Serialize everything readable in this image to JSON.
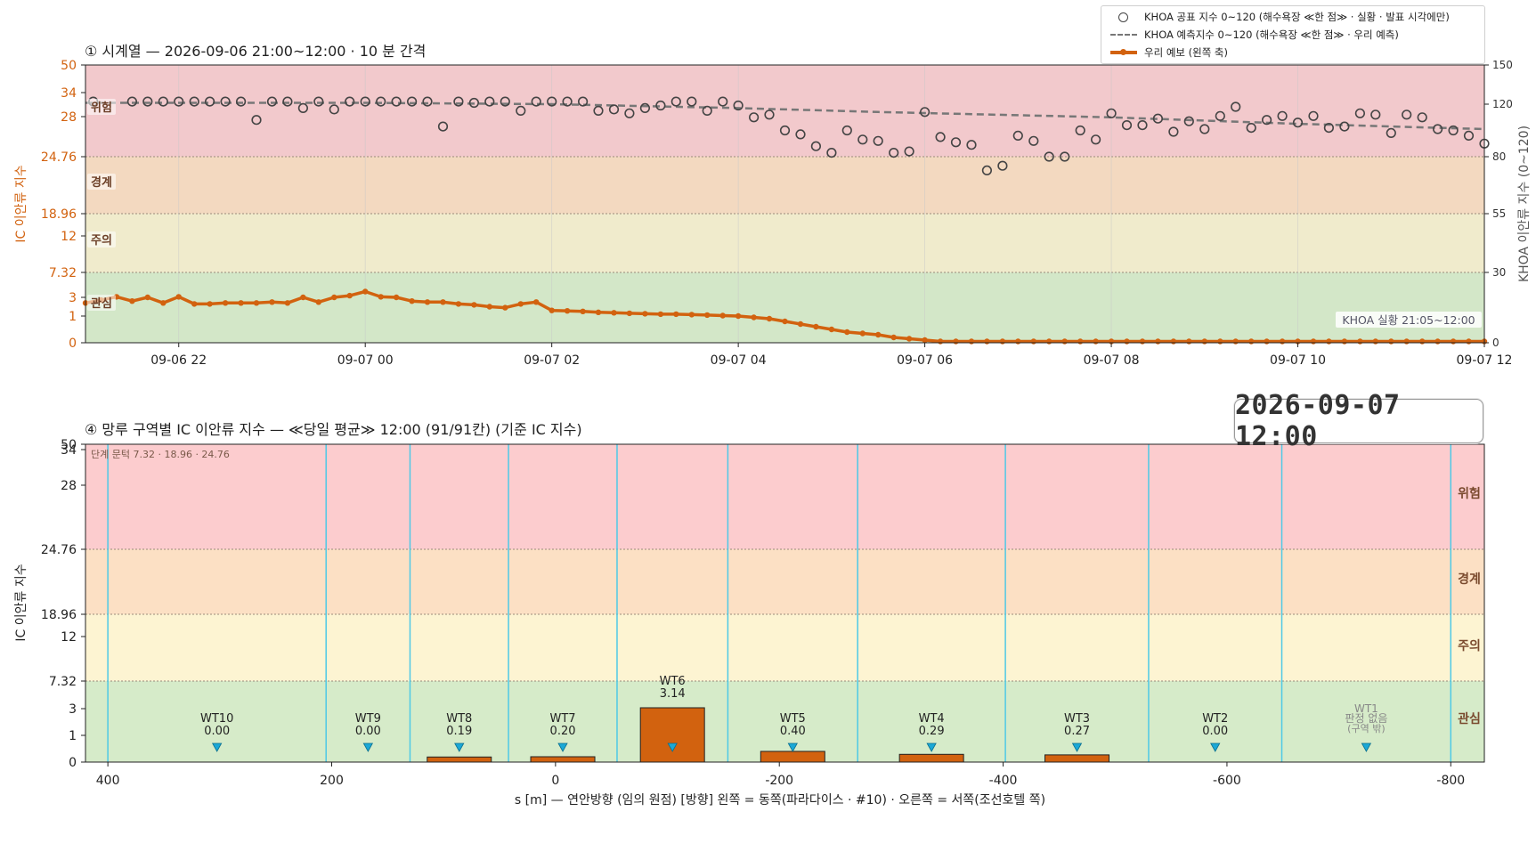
{
  "legend": {
    "khoa_obs": "KHOA 공표 지수 0~120 (해수욕장 ≪한 점≫ · 실황 · 발표 시각에만)",
    "khoa_fc": "KHOA 예측지수 0~120 (해수욕장 ≪한 점≫ · 우리 예측)",
    "ours": "우리 예보 (왼쪽 축)"
  },
  "clock": "2026-09-07  12:00",
  "top": {
    "title": "① 시계열 — 2026-09-06 21:00~12:00 · 10 분 간격",
    "ylabel_left": "IC 이안류 지수",
    "ylabel_right": "KHOA 이안류 지수 (0~120)",
    "badge": "KHOA 실황 21:05~12:00",
    "left_ticks": [
      "0",
      "1",
      "3",
      "7.32",
      "12",
      "18.96",
      "24.76",
      "28",
      "34",
      "50"
    ],
    "right_ticks": [
      "0",
      "30",
      "55",
      "80",
      "120",
      "150"
    ],
    "x_ticks": [
      "09-06 22",
      "09-07 00",
      "09-07 02",
      "09-07 04",
      "09-07 06",
      "09-07 08",
      "09-07 10",
      "09-07 12"
    ],
    "bands": [
      "관심",
      "주의",
      "경계",
      "위험"
    ]
  },
  "bottom": {
    "title": "④ 망루 구역별 IC 이안류 지수 — ≪당일 평균≫ 12:00  (91/91칸)   (기준 IC 지수)",
    "ylabel": "IC 이안류 지수",
    "xlabel": "s [m] — 연안방향 (임의 원점)     [방향] 왼쪽 = 동쪽(파라다이스 · #10) · 오른쪽 = 서쪽(조선호텔 쪽)",
    "threshold_note": "단계 문턱 7.32 · 18.96 · 24.76",
    "left_ticks": [
      "0",
      "1",
      "3",
      "7.32",
      "12",
      "18.96",
      "24.76",
      "28",
      "34",
      "50"
    ],
    "x_ticks": [
      "400",
      "200",
      "0",
      "-200",
      "-400",
      "-600",
      "-800"
    ],
    "bands": [
      "관심",
      "주의",
      "경계",
      "위험"
    ],
    "wt1_note": [
      "WT1",
      "판정 없음",
      "(구역 밖)"
    ]
  },
  "colors": {
    "ours": "#d2620f",
    "khoa": "#555555",
    "band_danger": "#f2c9cc",
    "band_warn": "#f3d9c0",
    "band_caution": "#f0ebcc",
    "band_interest": "#d3e7c8",
    "zone_line": "#4ec9e6",
    "marker": "#1ba8d6",
    "axis_orange": "#d2620f"
  },
  "chart_data": [
    {
      "type": "line",
      "title": "① 시계열 — 2026-09-06 21:00~12:00 · 10 분 간격",
      "x_start": "2026-09-06 21:00",
      "x_end": "2026-09-07 12:00",
      "ylabel": "IC 이안류 지수",
      "y2label": "KHOA 이안류 지수 (0~120)",
      "ylim": [
        0,
        50
      ],
      "y2lim": [
        0,
        150
      ],
      "left_scale_ticks": [
        0,
        1,
        3,
        7.32,
        12,
        18.96,
        24.76,
        28,
        34,
        50
      ],
      "right_scale_ticks": [
        0,
        30,
        55,
        80,
        120,
        150
      ],
      "thresholds": [
        7.32,
        18.96,
        24.76
      ],
      "series": [
        {
          "name": "우리 예보 (왼쪽 축)",
          "x": [
            "2026-09-06 21:00",
            "2026-09-06 21:10",
            "2026-09-06 21:20",
            "2026-09-06 21:30",
            "2026-09-06 21:40",
            "2026-09-06 21:50",
            "2026-09-06 22:00",
            "2026-09-06 22:10",
            "2026-09-06 22:20",
            "2026-09-06 22:30",
            "2026-09-06 22:40",
            "2026-09-06 22:50",
            "2026-09-06 23:00",
            "2026-09-06 23:10",
            "2026-09-06 23:20",
            "2026-09-06 23:30",
            "2026-09-06 23:40",
            "2026-09-06 23:50",
            "2026-09-07 00:00",
            "2026-09-07 00:10",
            "2026-09-07 00:20",
            "2026-09-07 00:30",
            "2026-09-07 00:40",
            "2026-09-07 00:50",
            "2026-09-07 01:00",
            "2026-09-07 01:10",
            "2026-09-07 01:20",
            "2026-09-07 01:30",
            "2026-09-07 01:40",
            "2026-09-07 01:50",
            "2026-09-07 02:00",
            "2026-09-07 02:10",
            "2026-09-07 02:20",
            "2026-09-07 02:30",
            "2026-09-07 02:40",
            "2026-09-07 02:50",
            "2026-09-07 03:00",
            "2026-09-07 03:10",
            "2026-09-07 03:20",
            "2026-09-07 03:30",
            "2026-09-07 03:40",
            "2026-09-07 03:50",
            "2026-09-07 04:00",
            "2026-09-07 04:10",
            "2026-09-07 04:20",
            "2026-09-07 04:30",
            "2026-09-07 04:40",
            "2026-09-07 04:50",
            "2026-09-07 05:00",
            "2026-09-07 05:10",
            "2026-09-07 05:20",
            "2026-09-07 05:30",
            "2026-09-07 05:40",
            "2026-09-07 05:50",
            "2026-09-07 06:00",
            "2026-09-07 06:10",
            "2026-09-07 06:20",
            "2026-09-07 06:30",
            "2026-09-07 06:40",
            "2026-09-07 06:50",
            "2026-09-07 07:00",
            "2026-09-07 07:10",
            "2026-09-07 07:20",
            "2026-09-07 07:30",
            "2026-09-07 07:40",
            "2026-09-07 07:50",
            "2026-09-07 08:00",
            "2026-09-07 08:10",
            "2026-09-07 08:20",
            "2026-09-07 08:30",
            "2026-09-07 08:40",
            "2026-09-07 08:50",
            "2026-09-07 09:00",
            "2026-09-07 09:10",
            "2026-09-07 09:20",
            "2026-09-07 09:30",
            "2026-09-07 09:40",
            "2026-09-07 09:50",
            "2026-09-07 10:00",
            "2026-09-07 10:10",
            "2026-09-07 10:20",
            "2026-09-07 10:30",
            "2026-09-07 10:40",
            "2026-09-07 10:50",
            "2026-09-07 11:00",
            "2026-09-07 11:10",
            "2026-09-07 11:20",
            "2026-09-07 11:30",
            "2026-09-07 11:40",
            "2026-09-07 11:50",
            "2026-09-07 12:00"
          ],
          "y": [
            2.4,
            2.7,
            3.1,
            2.6,
            3.0,
            2.4,
            3.1,
            2.3,
            2.3,
            2.4,
            2.4,
            2.4,
            2.5,
            2.4,
            3.0,
            2.5,
            3.0,
            3.3,
            4.0,
            3.1,
            3.0,
            2.6,
            2.5,
            2.5,
            2.3,
            2.2,
            2.0,
            1.9,
            2.3,
            2.5,
            1.6,
            1.55,
            1.5,
            1.4,
            1.35,
            1.3,
            1.25,
            1.2,
            1.2,
            1.15,
            1.1,
            1.05,
            1.0,
            0.95,
            0.9,
            0.8,
            0.7,
            0.6,
            0.5,
            0.4,
            0.35,
            0.3,
            0.2,
            0.15,
            0.1,
            0.05,
            0.05,
            0.05,
            0.05,
            0.05,
            0.05,
            0.05,
            0.05,
            0.05,
            0.05,
            0.05,
            0.05,
            0.05,
            0.05,
            0.05,
            0.05,
            0.05,
            0.05,
            0.05,
            0.05,
            0.05,
            0.05,
            0.05,
            0.05,
            0.05,
            0.05,
            0.05,
            0.05,
            0.05,
            0.05,
            0.05,
            0.05,
            0.05,
            0.05,
            0.05,
            0.05
          ]
        },
        {
          "name": "KHOA 예측지수 0~120 (해수욕장 ≪한 점≫ · 우리 예측)",
          "axis": "right",
          "x": [
            "2026-09-06 21:00",
            "2026-09-07 00:00",
            "2026-09-07 02:00",
            "2026-09-07 04:00",
            "2026-09-07 05:30",
            "2026-09-07 08:00",
            "2026-09-07 10:00",
            "2026-09-07 12:00"
          ],
          "y": [
            121,
            121,
            120,
            117,
            114,
            110,
            105,
            101
          ]
        },
        {
          "name": "KHOA 공표 지수 0~120 (해수욕장 ≪한 점≫ · 실황 · 발표 시각에만)",
          "axis": "right",
          "x": [
            "2026-09-06 21:05",
            "2026-09-06 21:30",
            "2026-09-06 21:40",
            "2026-09-06 21:50",
            "2026-09-06 22:00",
            "2026-09-06 22:10",
            "2026-09-06 22:20",
            "2026-09-06 22:30",
            "2026-09-06 22:40",
            "2026-09-06 22:50",
            "2026-09-06 23:00",
            "2026-09-06 23:10",
            "2026-09-06 23:20",
            "2026-09-06 23:30",
            "2026-09-06 23:40",
            "2026-09-06 23:50",
            "2026-09-07 00:00",
            "2026-09-07 00:10",
            "2026-09-07 00:20",
            "2026-09-07 00:30",
            "2026-09-07 00:40",
            "2026-09-07 00:50",
            "2026-09-07 01:00",
            "2026-09-07 01:10",
            "2026-09-07 01:20",
            "2026-09-07 01:30",
            "2026-09-07 01:40",
            "2026-09-07 01:50",
            "2026-09-07 02:00",
            "2026-09-07 02:10",
            "2026-09-07 02:20",
            "2026-09-07 02:30",
            "2026-09-07 02:40",
            "2026-09-07 02:50",
            "2026-09-07 03:00",
            "2026-09-07 03:10",
            "2026-09-07 03:20",
            "2026-09-07 03:30",
            "2026-09-07 03:40",
            "2026-09-07 03:50",
            "2026-09-07 04:00",
            "2026-09-07 04:10",
            "2026-09-07 04:20",
            "2026-09-07 04:30",
            "2026-09-07 04:40",
            "2026-09-07 04:50",
            "2026-09-07 05:00",
            "2026-09-07 05:10",
            "2026-09-07 05:20",
            "2026-09-07 05:30",
            "2026-09-07 05:40",
            "2026-09-07 05:50",
            "2026-09-07 06:00",
            "2026-09-07 06:10",
            "2026-09-07 06:20",
            "2026-09-07 06:30",
            "2026-09-07 06:40",
            "2026-09-07 06:50",
            "2026-09-07 07:00",
            "2026-09-07 07:10",
            "2026-09-07 07:20",
            "2026-09-07 07:30",
            "2026-09-07 07:40",
            "2026-09-07 07:50",
            "2026-09-07 08:00",
            "2026-09-07 08:10",
            "2026-09-07 08:20",
            "2026-09-07 08:30",
            "2026-09-07 08:40",
            "2026-09-07 08:50",
            "2026-09-07 09:00",
            "2026-09-07 09:10",
            "2026-09-07 09:20",
            "2026-09-07 09:30",
            "2026-09-07 09:40",
            "2026-09-07 09:50",
            "2026-09-07 10:00",
            "2026-09-07 10:10",
            "2026-09-07 10:20",
            "2026-09-07 10:30",
            "2026-09-07 10:40",
            "2026-09-07 10:50",
            "2026-09-07 11:00",
            "2026-09-07 11:10",
            "2026-09-07 11:20",
            "2026-09-07 11:30",
            "2026-09-07 11:40",
            "2026-09-07 11:50",
            "2026-09-07 12:00"
          ],
          "y": [
            122,
            122,
            122,
            122,
            122,
            122,
            122,
            122,
            122,
            108,
            122,
            122,
            117,
            122,
            116,
            122,
            122,
            122,
            122,
            122,
            122,
            103,
            122,
            121,
            122,
            122,
            115,
            122,
            122,
            122,
            122,
            115,
            116,
            113,
            117,
            119,
            122,
            122,
            115,
            122,
            119,
            110,
            112,
            100,
            97,
            88,
            83,
            100,
            93,
            92,
            83,
            84,
            114,
            95,
            91,
            89,
            74,
            76,
            96,
            92,
            80,
            80,
            100,
            93,
            113,
            104,
            104,
            109,
            99,
            107,
            101,
            111,
            118,
            102,
            108,
            111,
            106,
            111,
            102,
            103,
            113,
            112,
            98,
            112,
            110,
            101,
            100,
            96,
            90
          ]
        }
      ]
    },
    {
      "type": "bar",
      "title": "④ 망루 구역별 IC 이안류 지수 — ≪당일 평균≫ 12:00  (91/91칸)   (기준 IC 지수)",
      "xlabel": "s [m] — 연안방향 (임의 원점)     [방향] 왼쪽 = 동쪽(파라다이스 · #10) · 오른쪽 = 서쪽(조선호텔 쪽)",
      "ylabel": "IC 이안류 지수",
      "xlim": [
        420,
        -830
      ],
      "ylim": [
        0,
        50
      ],
      "thresholds": [
        7.32,
        18.96,
        24.76
      ],
      "categories": [
        "WT10",
        "WT9",
        "WT8",
        "WT7",
        "WT6",
        "WT5",
        "WT4",
        "WT3",
        "WT2",
        "WT1"
      ],
      "values": [
        0.0,
        0.0,
        0.19,
        0.2,
        3.14,
        0.4,
        0.29,
        0.27,
        0.0,
        null
      ],
      "labels": [
        "0.00",
        "0.00",
        "0.19",
        "0.20",
        "3.14",
        "0.40",
        "0.29",
        "0.27",
        "0.00",
        "판정 없음"
      ],
      "zones": [
        {
          "name": "WT10",
          "from": 400,
          "to": 205
        },
        {
          "name": "WT9",
          "from": 205,
          "to": 130
        },
        {
          "name": "WT8",
          "from": 130,
          "to": 42
        },
        {
          "name": "WT7",
          "from": 42,
          "to": -55
        },
        {
          "name": "WT6",
          "from": -55,
          "to": -154
        },
        {
          "name": "WT5",
          "from": -154,
          "to": -270
        },
        {
          "name": "WT4",
          "from": -270,
          "to": -402
        },
        {
          "name": "WT3",
          "from": -402,
          "to": -530
        },
        {
          "name": "WT2",
          "from": -530,
          "to": -649
        },
        {
          "name": "WT1",
          "from": -649,
          "to": -800
        }
      ],
      "x_ticks": [
        400,
        200,
        0,
        -200,
        -400,
        -600,
        -800
      ]
    }
  ]
}
